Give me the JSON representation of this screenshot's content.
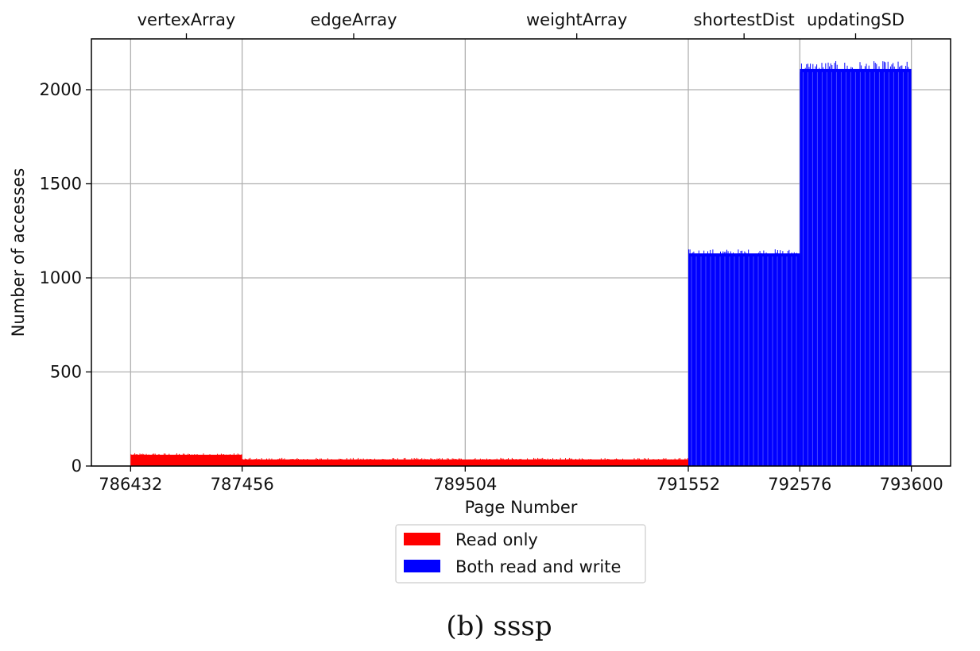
{
  "figure": {
    "caption": "(b) sssp"
  },
  "chart_data": {
    "type": "bar",
    "xlabel": "Page Number",
    "ylabel": "Number of accesses",
    "xlim": [
      786432,
      793600
    ],
    "ylim": [
      0,
      2270
    ],
    "grid": true,
    "x_ticks": [
      786432,
      787456,
      789504,
      791552,
      792576,
      793600
    ],
    "y_ticks": [
      0,
      500,
      1000,
      1500,
      2000
    ],
    "legend": {
      "placement": "bottom-center-outside",
      "entries": [
        {
          "label": "Read only",
          "color": "#ff0000"
        },
        {
          "label": "Both read and write",
          "color": "#0000ff"
        }
      ]
    },
    "regions": [
      {
        "name": "vertexArray",
        "x_start": 786432,
        "x_end": 787456
      },
      {
        "name": "edgeArray",
        "x_start": 787456,
        "x_end": 789504
      },
      {
        "name": "weightArray",
        "x_start": 789504,
        "x_end": 791552
      },
      {
        "name": "shortestDist",
        "x_start": 791552,
        "x_end": 792576
      },
      {
        "name": "updatingSD",
        "x_start": 792576,
        "x_end": 793600
      }
    ],
    "series": [
      {
        "name": "Read only",
        "color": "#ff0000",
        "segments": [
          {
            "x_start": 786432,
            "x_end": 787456,
            "approx_value": 60
          },
          {
            "x_start": 787456,
            "x_end": 791552,
            "approx_value": 35
          }
        ]
      },
      {
        "name": "Both read and write",
        "color": "#0000ff",
        "segments": [
          {
            "x_start": 791552,
            "x_end": 792576,
            "approx_value": 1130
          },
          {
            "x_start": 792576,
            "x_end": 793600,
            "approx_value": 2110
          }
        ]
      }
    ]
  }
}
